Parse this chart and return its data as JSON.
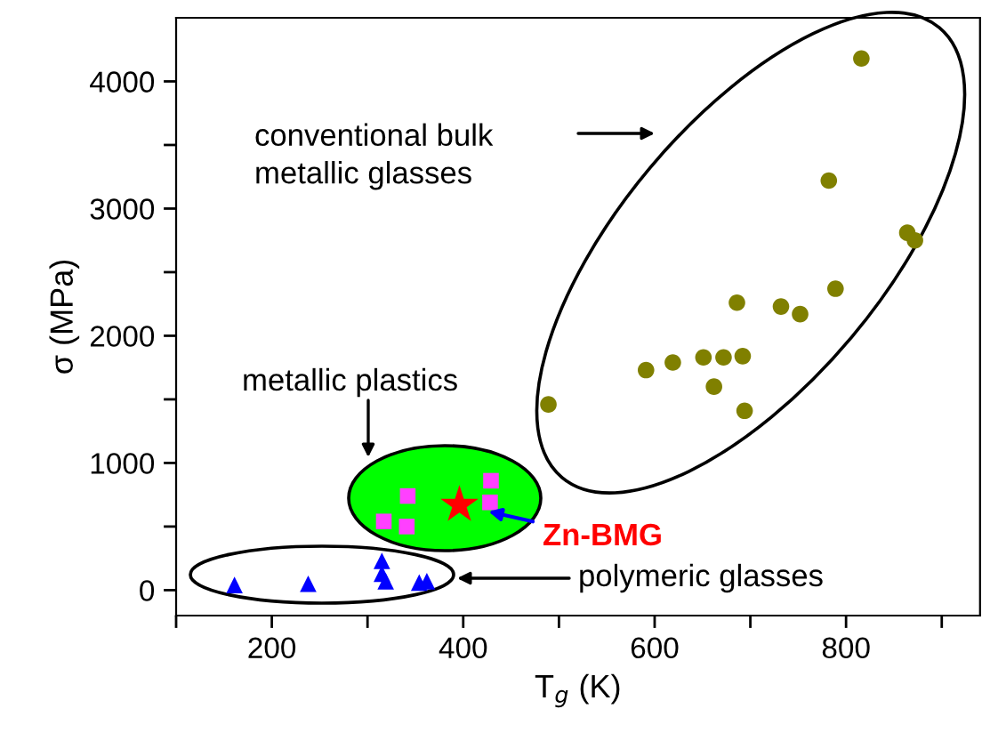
{
  "chart_data": {
    "type": "scatter",
    "xlabel": "T$_{g}$ (K)",
    "ylabel": "σ (MPa)",
    "xlim": [
      100,
      940
    ],
    "ylim": [
      -200,
      4500
    ],
    "xticks": [
      {
        "value": 100,
        "label": null
      },
      200,
      {
        "value": 300,
        "label": null
      },
      400,
      {
        "value": 500,
        "label": null
      },
      600,
      {
        "value": 700,
        "label": null
      },
      800,
      {
        "value": 900,
        "label": null
      }
    ],
    "yticks": [
      0,
      {
        "value": 500,
        "label": null
      },
      1000,
      {
        "value": 1500,
        "label": null
      },
      2000,
      {
        "value": 2500,
        "label": null
      },
      3000,
      {
        "value": 3500,
        "label": null
      },
      4000
    ],
    "grid": false,
    "legend": false,
    "series": [
      {
        "color": "#808000",
        "marker": "circle",
        "x": [
          489,
          591,
          619,
          651,
          672,
          692,
          662,
          694,
          686,
          732,
          752,
          789,
          782,
          864,
          872,
          816
        ],
        "values": [
          1460,
          1730,
          1790,
          1830,
          1830,
          1840,
          1600,
          1410,
          2260,
          2230,
          2170,
          2370,
          3220,
          2810,
          2750,
          4180
        ]
      },
      {
        "color": "#ff40ff",
        "marker": "square",
        "x": [
          317,
          342,
          341,
          429,
          428
        ],
        "values": [
          540,
          740,
          500,
          860,
          690
        ]
      },
      {
        "color": "#0000ff",
        "marker": "triangle",
        "x": [
          161,
          238,
          315,
          315,
          319,
          354,
          362
        ],
        "values": [
          40,
          50,
          230,
          130,
          70,
          60,
          70
        ]
      },
      {
        "color": "#ff0000",
        "marker": "star",
        "x": [
          396
        ],
        "values": [
          670
        ]
      }
    ],
    "annotations": [
      "conventional bulk\nmetallic glasses",
      "metallic plastics",
      {
        "text": "Zn-BMG",
        "x": 396,
        "y": 670
      },
      "polymeric glasses"
    ]
  }
}
